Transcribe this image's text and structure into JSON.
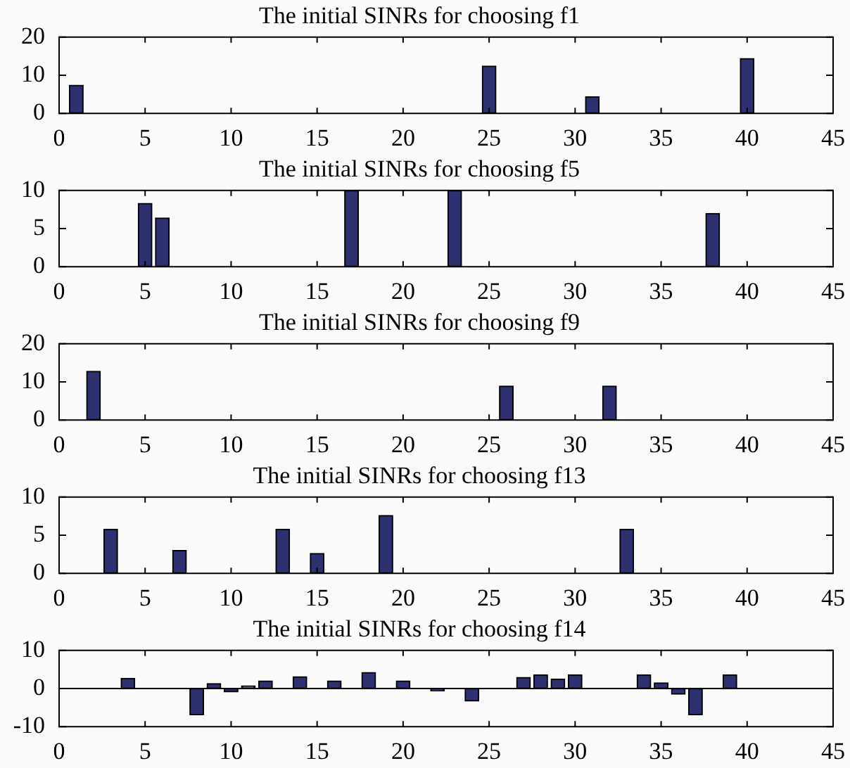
{
  "chart_data": [
    {
      "type": "bar",
      "title": "The initial SINRs for choosing f1",
      "x": [
        1,
        25,
        31,
        40
      ],
      "values": [
        7.4,
        12.4,
        4.4,
        14.4
      ],
      "color": "#2e3170",
      "xlim": [
        0,
        45
      ],
      "xticks": [
        0,
        5,
        10,
        15,
        20,
        25,
        30,
        35,
        40,
        45
      ],
      "ylim": [
        0,
        20
      ],
      "yticks": [
        0,
        10,
        20
      ]
    },
    {
      "type": "bar",
      "title": "The initial SINRs for choosing f5",
      "x": [
        5,
        6,
        17,
        23,
        38
      ],
      "values": [
        8.3,
        6.4,
        10,
        10,
        7.0
      ],
      "color": "#2e3170",
      "xlim": [
        0,
        45
      ],
      "xticks": [
        0,
        5,
        10,
        15,
        20,
        25,
        30,
        35,
        40,
        45
      ],
      "ylim": [
        0,
        10
      ],
      "yticks": [
        0,
        5,
        10
      ]
    },
    {
      "type": "bar",
      "title": "The initial SINRs for choosing f9",
      "x": [
        2,
        26,
        32
      ],
      "values": [
        12.8,
        8.9,
        8.9
      ],
      "color": "#2e3170",
      "xlim": [
        0,
        45
      ],
      "xticks": [
        0,
        5,
        10,
        15,
        20,
        25,
        30,
        35,
        40,
        45
      ],
      "ylim": [
        0,
        20
      ],
      "yticks": [
        0,
        10,
        20
      ]
    },
    {
      "type": "bar",
      "title": "The initial SINRs for choosing f13",
      "x": [
        3,
        7,
        13,
        15,
        19,
        33
      ],
      "values": [
        5.8,
        3.0,
        5.8,
        2.6,
        7.6,
        5.8
      ],
      "color": "#2e3170",
      "xlim": [
        0,
        45
      ],
      "xticks": [
        0,
        5,
        10,
        15,
        20,
        25,
        30,
        35,
        40,
        45
      ],
      "ylim": [
        0,
        10
      ],
      "yticks": [
        0,
        5,
        10
      ]
    },
    {
      "type": "bar",
      "title": "The initial SINRs for choosing f14",
      "x": [
        4,
        8,
        9,
        10,
        11,
        12,
        14,
        16,
        18,
        20,
        22,
        24,
        27,
        28,
        29,
        30,
        34,
        35,
        36,
        37,
        39
      ],
      "values": [
        2.7,
        -6.9,
        1.3,
        -0.9,
        0.7,
        2.0,
        3.1,
        2.0,
        4.2,
        2.0,
        -0.6,
        -3.3,
        2.9,
        3.6,
        2.5,
        3.6,
        3.6,
        1.5,
        -1.5,
        -6.9,
        3.6
      ],
      "color": "#2e3170",
      "xlim": [
        0,
        45
      ],
      "xticks": [
        0,
        5,
        10,
        15,
        20,
        25,
        30,
        35,
        40,
        45
      ],
      "ylim": [
        -10,
        10
      ],
      "yticks": [
        -10,
        0,
        10
      ],
      "ref_lines": [
        {
          "axis": "y",
          "value": 0,
          "color": "#000000"
        }
      ]
    }
  ]
}
